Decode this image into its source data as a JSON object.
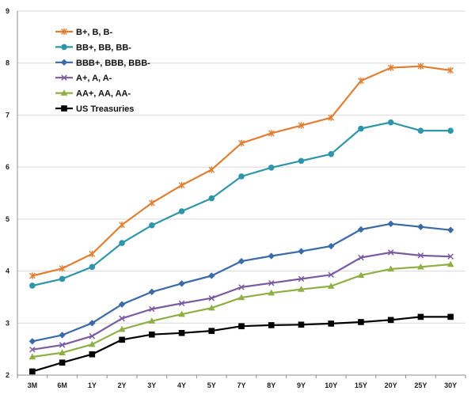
{
  "chart_data": {
    "type": "line",
    "title": "",
    "xlabel": "",
    "ylabel": "",
    "categories": [
      "3M",
      "6M",
      "1Y",
      "2Y",
      "3Y",
      "4Y",
      "5Y",
      "7Y",
      "8Y",
      "9Y",
      "10Y",
      "15Y",
      "20Y",
      "25Y",
      "30Y"
    ],
    "ylim": [
      2,
      9
    ],
    "yticks": [
      2,
      3,
      4,
      5,
      6,
      7,
      8,
      9
    ],
    "grid": true,
    "legend_position": "top-left",
    "series": [
      {
        "name": "B+, B, B-",
        "color": "#e07f33",
        "marker": "star",
        "values": [
          3.91,
          4.05,
          4.33,
          4.89,
          5.31,
          5.65,
          5.95,
          6.46,
          6.65,
          6.8,
          6.95,
          7.66,
          7.91,
          7.94,
          7.86
        ]
      },
      {
        "name": "BB+, BB, BB-",
        "color": "#2f96a9",
        "marker": "circle",
        "values": [
          3.72,
          3.85,
          4.08,
          4.54,
          4.88,
          5.15,
          5.4,
          5.82,
          5.99,
          6.12,
          6.25,
          6.74,
          6.86,
          6.7,
          6.7
        ]
      },
      {
        "name": "BBB+, BBB, BBB-",
        "color": "#3b6aa8",
        "marker": "diamond",
        "values": [
          2.65,
          2.77,
          3.0,
          3.36,
          3.6,
          3.76,
          3.91,
          4.19,
          4.29,
          4.38,
          4.48,
          4.8,
          4.91,
          4.85,
          4.79
        ]
      },
      {
        "name": "A+, A, A-",
        "color": "#7a5ba2",
        "marker": "x",
        "values": [
          2.49,
          2.58,
          2.75,
          3.09,
          3.27,
          3.38,
          3.48,
          3.69,
          3.77,
          3.85,
          3.93,
          4.26,
          4.36,
          4.3,
          4.28
        ]
      },
      {
        "name": "AA+, AA, AA-",
        "color": "#8fae45",
        "marker": "triangle",
        "values": [
          2.35,
          2.43,
          2.59,
          2.88,
          3.04,
          3.17,
          3.29,
          3.49,
          3.58,
          3.65,
          3.71,
          3.92,
          4.04,
          4.08,
          4.13
        ]
      },
      {
        "name": "US Treasuries",
        "color": "#000000",
        "marker": "square",
        "values": [
          2.07,
          2.24,
          2.4,
          2.68,
          2.78,
          2.81,
          2.85,
          2.94,
          2.96,
          2.97,
          2.99,
          3.02,
          3.06,
          3.12,
          3.12
        ]
      }
    ]
  }
}
